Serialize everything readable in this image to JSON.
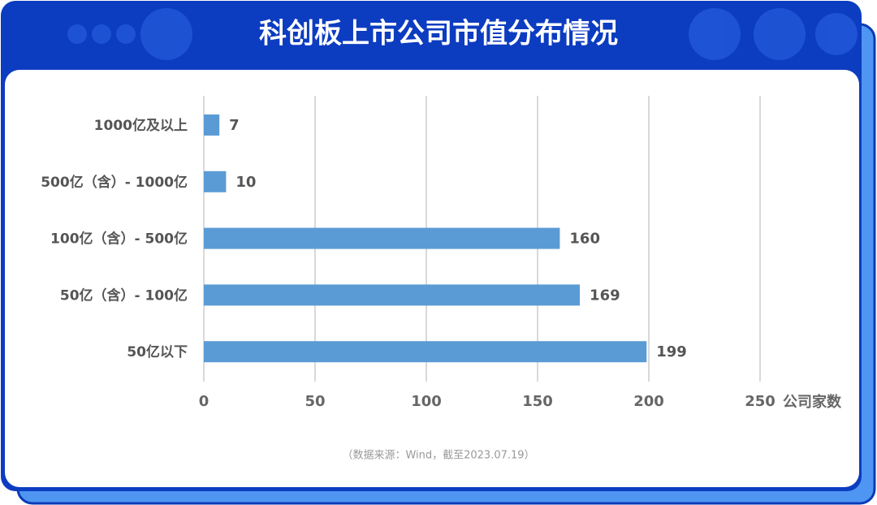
{
  "chart_data": {
    "type": "bar",
    "orientation": "horizontal",
    "title": "科创板上市公司市值分布情况",
    "categories": [
      "1000亿及以上",
      "500亿（含）- 1000亿",
      "100亿（含）- 500亿",
      "50亿（含）- 100亿",
      "50亿以下"
    ],
    "values": [
      7,
      10,
      160,
      169,
      199
    ],
    "color": "#5b9bd5",
    "xlim": [
      0,
      250
    ],
    "xticks": [
      0,
      50,
      100,
      150,
      200,
      250
    ],
    "x_label": "公司家数",
    "grid": true,
    "source": "（数据来源：Wind，截至2023.07.19）"
  }
}
